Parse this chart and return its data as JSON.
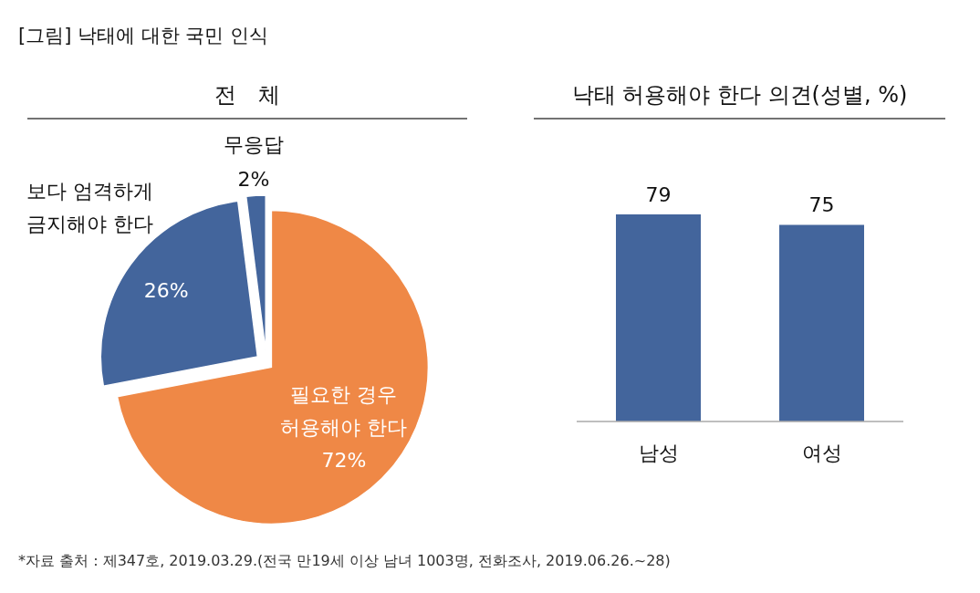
{
  "chart_data": [
    {
      "type": "pie",
      "title": "전　체",
      "categories": [
        "필요한 경우 허용해야 한다",
        "보다 엄격하게 금지해야 한다",
        "무응답"
      ],
      "values": [
        72,
        26,
        2
      ],
      "colors": [
        "#ef8846",
        "#43659c",
        "#43659c"
      ],
      "value_labels": [
        "72%",
        "26%",
        "2%"
      ],
      "annotations": [
        "[그림] 낙태에 대한 국민 인식",
        "*자료 출처 : 제347호, 2019.03.29.(전국 만19세 이상 남녀 1003명, 전화조사, 2019.06.26.~28)"
      ]
    },
    {
      "type": "bar",
      "title": "낙태 허용해야 한다 의견(성별, %)",
      "categories": [
        "남성",
        "여성"
      ],
      "values": [
        79,
        75
      ],
      "color": "#43659c",
      "data_labels": true
    }
  ]
}
